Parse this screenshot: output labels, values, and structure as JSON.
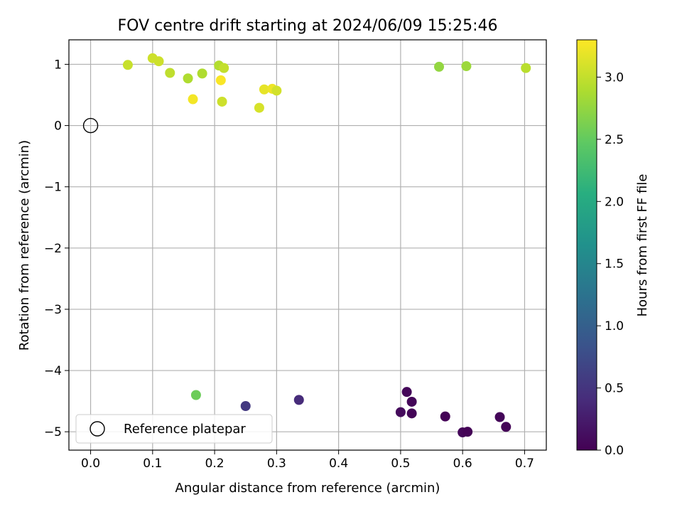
{
  "chart_data": {
    "type": "scatter",
    "title": "FOV centre drift starting at 2024/06/09 15:25:46",
    "xlabel": "Angular distance from reference (arcmin)",
    "ylabel": "Rotation from reference (arcmin)",
    "xlim": [
      -0.035,
      0.735
    ],
    "ylim": [
      -5.3,
      1.4
    ],
    "xticks": [
      0.0,
      0.1,
      0.2,
      0.3,
      0.4,
      0.5,
      0.6,
      0.7
    ],
    "xtick_labels": [
      "0.0",
      "0.1",
      "0.2",
      "0.3",
      "0.4",
      "0.5",
      "0.6",
      "0.7"
    ],
    "yticks": [
      1,
      0,
      -1,
      -2,
      -3,
      -4,
      -5
    ],
    "ytick_labels": [
      "1",
      "0",
      "−1",
      "−2",
      "−3",
      "−4",
      "−5"
    ],
    "grid": true,
    "colormap": "viridis",
    "colorbar": {
      "label": "Hours from first FF file",
      "range": [
        0.0,
        3.3
      ],
      "ticks": [
        0.0,
        0.5,
        1.0,
        1.5,
        2.0,
        2.5,
        3.0
      ],
      "tick_labels": [
        "0.0",
        "0.5",
        "1.0",
        "1.5",
        "2.0",
        "2.5",
        "3.0"
      ]
    },
    "legend": {
      "label": "Reference platepar",
      "position": "lower-left"
    },
    "reference_point": {
      "x": 0.0,
      "y": 0.0
    },
    "points": [
      {
        "x": 0.51,
        "y": -4.35,
        "hours": 0.05
      },
      {
        "x": 0.518,
        "y": -4.51,
        "hours": 0.05
      },
      {
        "x": 0.5,
        "y": -4.68,
        "hours": 0.08
      },
      {
        "x": 0.518,
        "y": -4.7,
        "hours": 0.04
      },
      {
        "x": 0.572,
        "y": -4.75,
        "hours": 0.02
      },
      {
        "x": 0.66,
        "y": -4.76,
        "hours": 0.05
      },
      {
        "x": 0.67,
        "y": -4.92,
        "hours": 0.03
      },
      {
        "x": 0.6,
        "y": -5.01,
        "hours": 0.05
      },
      {
        "x": 0.608,
        "y": -5.0,
        "hours": 0.02
      },
      {
        "x": 0.336,
        "y": -4.48,
        "hours": 0.4
      },
      {
        "x": 0.25,
        "y": -4.58,
        "hours": 0.55
      },
      {
        "x": 0.17,
        "y": -4.4,
        "hours": 2.55
      },
      {
        "x": 0.06,
        "y": 0.99,
        "hours": 3.02
      },
      {
        "x": 0.1,
        "y": 1.1,
        "hours": 3.05
      },
      {
        "x": 0.11,
        "y": 1.05,
        "hours": 3.05
      },
      {
        "x": 0.128,
        "y": 0.86,
        "hours": 2.98
      },
      {
        "x": 0.157,
        "y": 0.77,
        "hours": 2.9
      },
      {
        "x": 0.18,
        "y": 0.85,
        "hours": 2.9
      },
      {
        "x": 0.165,
        "y": 0.43,
        "hours": 3.25
      },
      {
        "x": 0.207,
        "y": 0.98,
        "hours": 2.92
      },
      {
        "x": 0.215,
        "y": 0.94,
        "hours": 3.0
      },
      {
        "x": 0.21,
        "y": 0.74,
        "hours": 3.28
      },
      {
        "x": 0.212,
        "y": 0.39,
        "hours": 3.05
      },
      {
        "x": 0.28,
        "y": 0.59,
        "hours": 3.18
      },
      {
        "x": 0.293,
        "y": 0.6,
        "hours": 3.22
      },
      {
        "x": 0.3,
        "y": 0.57,
        "hours": 3.08
      },
      {
        "x": 0.272,
        "y": 0.29,
        "hours": 3.1
      },
      {
        "x": 0.562,
        "y": 0.96,
        "hours": 2.75
      },
      {
        "x": 0.606,
        "y": 0.97,
        "hours": 2.8
      },
      {
        "x": 0.702,
        "y": 0.94,
        "hours": 2.95
      }
    ]
  }
}
